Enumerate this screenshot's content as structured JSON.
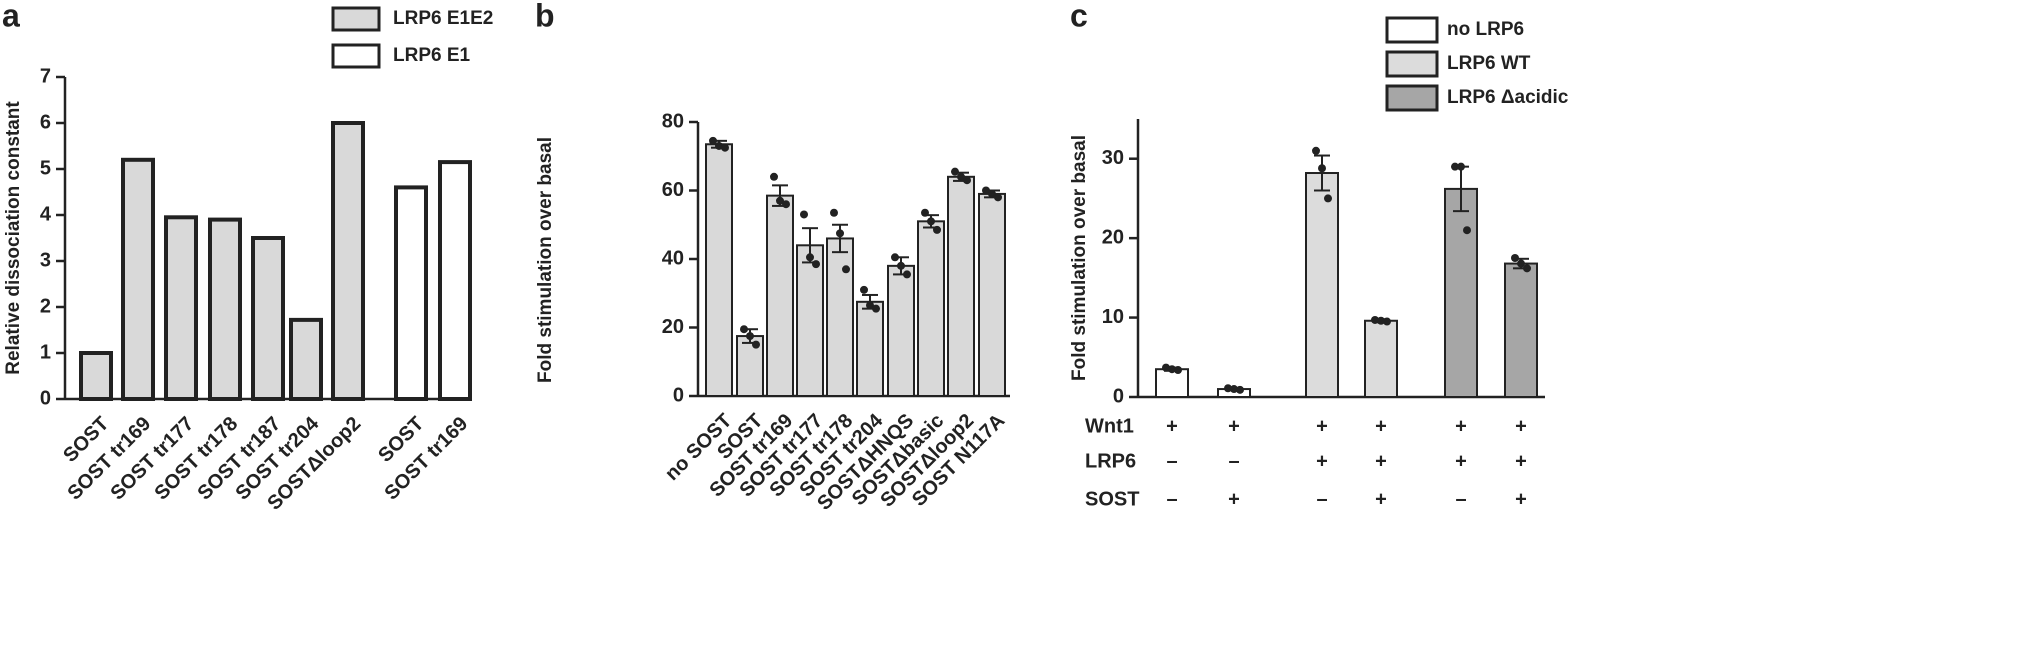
{
  "chart_data": [
    {
      "type": "bar",
      "panel": "a",
      "ylabel": "Relative dissociation constant",
      "categories": [
        "SOST",
        "SOST tr169",
        "SOST tr177",
        "SOST tr178",
        "SOST tr187",
        "SOST tr204",
        "SOSTΔloop2",
        "SOST",
        "SOST tr169"
      ],
      "series": [
        {
          "name": "LRP6 E1E2",
          "color": "#d9d9d9",
          "values": [
            1.0,
            5.2,
            3.95,
            3.9,
            3.5,
            1.72,
            6.0,
            null,
            null
          ]
        },
        {
          "name": "LRP6 E1",
          "color": "#ffffff",
          "values": [
            null,
            null,
            null,
            null,
            null,
            null,
            null,
            4.6,
            5.15
          ]
        }
      ],
      "ylim": [
        0,
        7
      ],
      "yticks": [
        0,
        1,
        2,
        3,
        4,
        5,
        6,
        7
      ]
    },
    {
      "type": "bar",
      "panel": "b",
      "ylabel": "Fold stimulation over basal",
      "categories": [
        "no SOST",
        "SOST",
        "SOST tr169",
        "SOST tr177",
        "SOST tr178",
        "SOST tr204",
        "SOSTΔHNQS",
        "SOSTΔbasic",
        "SOSTΔloop2",
        "SOST N117A"
      ],
      "color": "#d9d9d9",
      "values": [
        73.5,
        17.5,
        58.5,
        44,
        46,
        27.5,
        38,
        51,
        64,
        59
      ],
      "errors": [
        1,
        2,
        3,
        5,
        4,
        2,
        2.5,
        1.8,
        1.2,
        1
      ],
      "points": [
        [
          74.5,
          73,
          72.5
        ],
        [
          19.5,
          17.5,
          15
        ],
        [
          64,
          57,
          56
        ],
        [
          53,
          40.5,
          38.5
        ],
        [
          53.5,
          47.5,
          37
        ],
        [
          31,
          26.5,
          25.5
        ],
        [
          40.5,
          38,
          35.5
        ],
        [
          53.5,
          51,
          48.5
        ],
        [
          65.5,
          64,
          63
        ],
        [
          60,
          59,
          58
        ]
      ],
      "ylim": [
        0,
        80
      ],
      "yticks": [
        0,
        20,
        40,
        60,
        80
      ]
    },
    {
      "type": "bar",
      "panel": "c",
      "ylabel": "Fold stimulation over basal",
      "series": [
        {
          "name": "no LRP6",
          "color": "#ffffff",
          "values": [
            3.5,
            1.0,
            null,
            null,
            null,
            null
          ],
          "errors": [
            0.2,
            0.15,
            null,
            null,
            null,
            null
          ],
          "points": [
            [
              3.7,
              3.5,
              3.4
            ],
            [
              1.1,
              1.0,
              0.9
            ],
            null,
            null,
            null,
            null
          ]
        },
        {
          "name": "LRP6 WT",
          "color": "#dcdcdc",
          "values": [
            null,
            null,
            28.2,
            9.6,
            null,
            null
          ],
          "errors": [
            null,
            null,
            2.2,
            0.2,
            null,
            null
          ],
          "points": [
            null,
            null,
            [
              31,
              28.8,
              25
            ],
            [
              9.7,
              9.6,
              9.5
            ],
            null,
            null
          ]
        },
        {
          "name": "LRP6 Δacidic",
          "color": "#a6a6a6",
          "values": [
            null,
            null,
            null,
            null,
            26.2,
            16.8
          ],
          "errors": [
            null,
            null,
            null,
            null,
            2.8,
            0.6
          ],
          "points": [
            null,
            null,
            null,
            null,
            [
              29,
              29,
              21
            ],
            [
              17.5,
              16.8,
              16.2
            ]
          ]
        }
      ],
      "conditions": [
        {
          "name": "Wnt1",
          "values": [
            "+",
            "+",
            "+",
            "+",
            "+",
            "+"
          ]
        },
        {
          "name": "LRP6",
          "values": [
            "–",
            "–",
            "+",
            "+",
            "+",
            "+"
          ]
        },
        {
          "name": "SOST",
          "values": [
            "–",
            "+",
            "–",
            "+",
            "–",
            "+"
          ]
        }
      ],
      "ylim": [
        0,
        35
      ],
      "yticks": [
        0,
        10,
        20,
        30
      ]
    }
  ]
}
